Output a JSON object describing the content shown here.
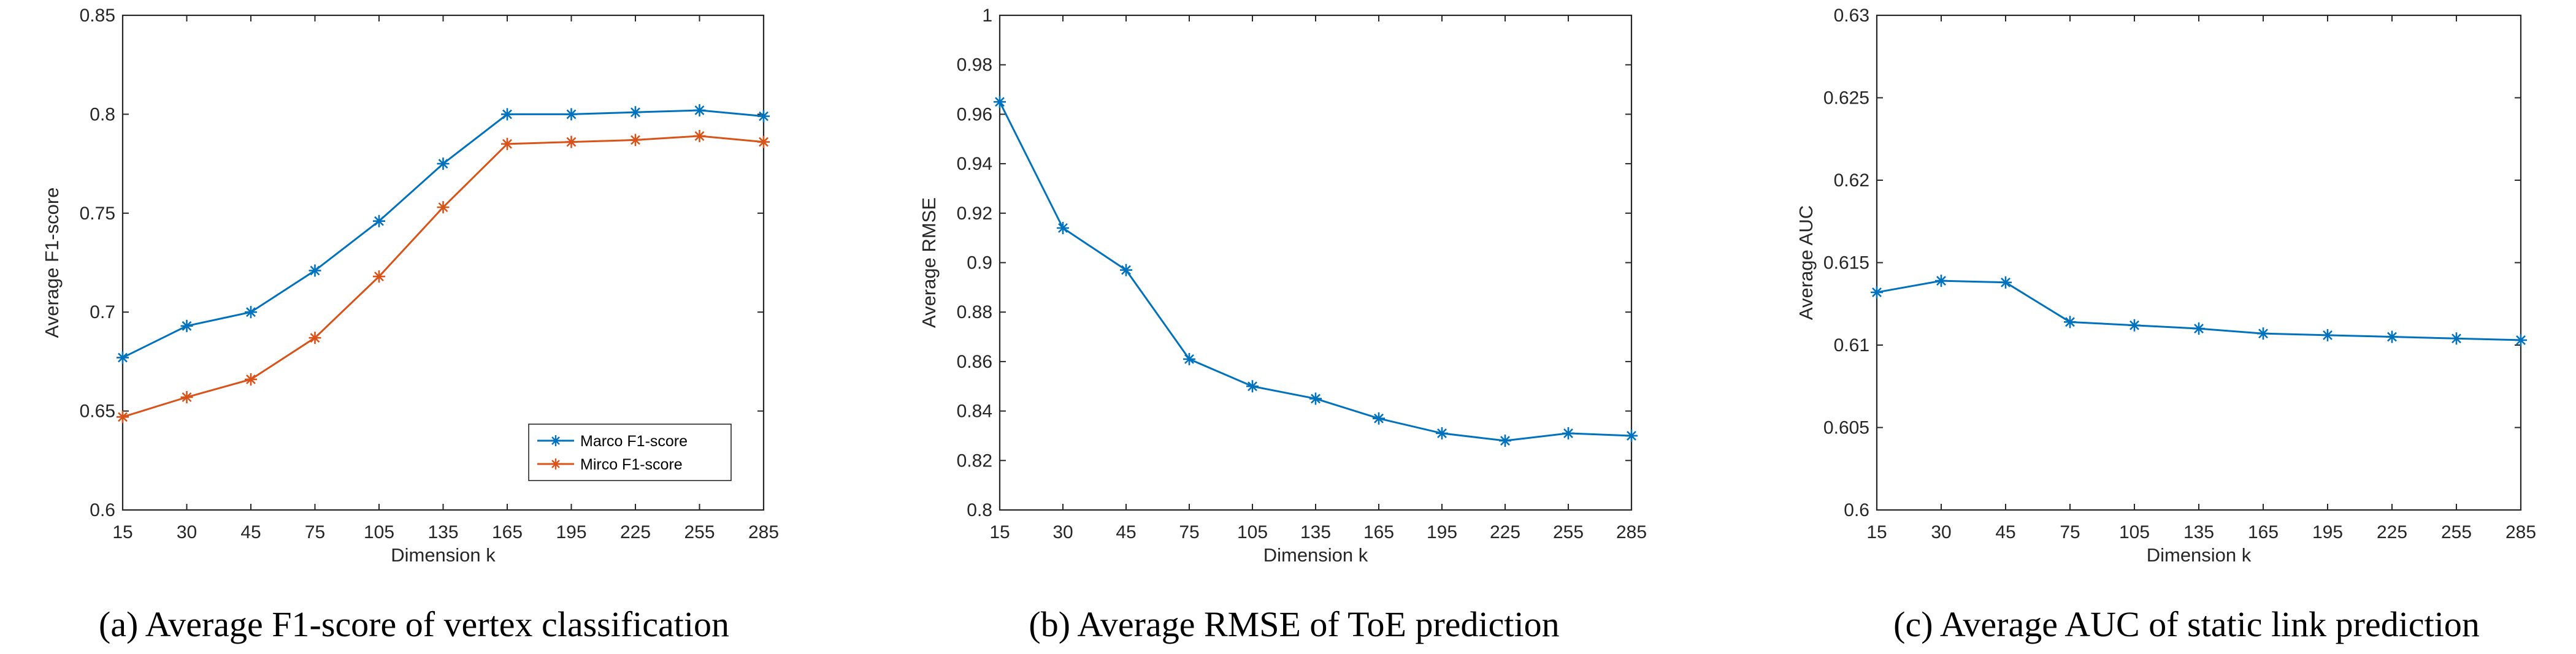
{
  "chart_data": [
    {
      "type": "line",
      "caption": "(a)  Average F1-score of vertex classification",
      "title": "",
      "xlabel": "Dimension k",
      "ylabel": "Average F1-score",
      "categories": [
        15,
        30,
        45,
        75,
        105,
        135,
        165,
        195,
        225,
        255,
        285
      ],
      "ylim": [
        0.6,
        0.85
      ],
      "yticks": [
        0.6,
        0.65,
        0.7,
        0.75,
        0.8,
        0.85
      ],
      "ytick_labels": [
        "0.6",
        "0.65",
        "0.7",
        "0.75",
        "0.8",
        "0.85"
      ],
      "grid": false,
      "legend_position": "bottom-right",
      "series": [
        {
          "name": "Marco F1-score",
          "color": "#0072BD",
          "values": [
            0.677,
            0.693,
            0.7,
            0.721,
            0.746,
            0.775,
            0.8,
            0.8,
            0.801,
            0.802,
            0.799
          ]
        },
        {
          "name": "Mirco F1-score",
          "color": "#D95319",
          "values": [
            0.647,
            0.657,
            0.666,
            0.687,
            0.718,
            0.753,
            0.785,
            0.786,
            0.787,
            0.789,
            0.786
          ]
        }
      ]
    },
    {
      "type": "line",
      "caption": "(b)  Average RMSE of ToE prediction",
      "title": "",
      "xlabel": "Dimension k",
      "ylabel": "Average RMSE",
      "categories": [
        15,
        30,
        45,
        75,
        105,
        135,
        165,
        195,
        225,
        255,
        285
      ],
      "ylim": [
        0.8,
        1.0
      ],
      "yticks": [
        0.8,
        0.82,
        0.84,
        0.86,
        0.88,
        0.9,
        0.92,
        0.94,
        0.96,
        0.98,
        1.0
      ],
      "ytick_labels": [
        "0.8",
        "0.82",
        "0.84",
        "0.86",
        "0.88",
        "0.9",
        "0.92",
        "0.94",
        "0.96",
        "0.98",
        "1"
      ],
      "grid": false,
      "series": [
        {
          "color": "#0072BD",
          "values": [
            0.965,
            0.914,
            0.897,
            0.861,
            0.85,
            0.845,
            0.837,
            0.831,
            0.828,
            0.831,
            0.83
          ]
        }
      ]
    },
    {
      "type": "line",
      "caption": "(c)  Average AUC of static link prediction",
      "title": "",
      "xlabel": "Dimension k",
      "ylabel": "Average AUC",
      "categories": [
        15,
        30,
        45,
        75,
        105,
        135,
        165,
        195,
        225,
        255,
        285
      ],
      "ylim": [
        0.6,
        0.63
      ],
      "yticks": [
        0.6,
        0.605,
        0.61,
        0.615,
        0.62,
        0.625,
        0.63
      ],
      "ytick_labels": [
        "0.6",
        "0.605",
        "0.61",
        "0.615",
        "0.62",
        "0.625",
        "0.63"
      ],
      "grid": false,
      "series": [
        {
          "color": "#0072BD",
          "values": [
            0.6132,
            0.6139,
            0.6138,
            0.6114,
            0.6112,
            0.611,
            0.6107,
            0.6106,
            0.6105,
            0.6104,
            0.6103
          ]
        }
      ]
    }
  ]
}
